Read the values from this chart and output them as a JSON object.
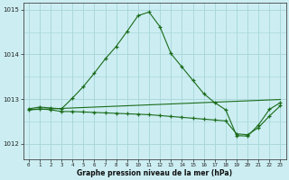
{
  "title": "Graphe pression niveau de la mer (hPa)",
  "background_color": "#cceef2",
  "grid_color": "#aad8dc",
  "line_color": "#1a6b1a",
  "marker_color": "#1a6b1a",
  "xlim": [
    -0.5,
    23.5
  ],
  "ylim": [
    1011.65,
    1015.15
  ],
  "yticks": [
    1012,
    1013,
    1014,
    1015
  ],
  "xtick_labels": [
    "0",
    "1",
    "2",
    "3",
    "4",
    "5",
    "6",
    "7",
    "8",
    "9",
    "10",
    "11",
    "12",
    "13",
    "14",
    "15",
    "16",
    "17",
    "18",
    "19",
    "20",
    "21",
    "22",
    "23"
  ],
  "series1": [
    1012.78,
    1012.82,
    1012.8,
    1012.78,
    1013.02,
    1013.28,
    1013.58,
    1013.9,
    1014.18,
    1014.52,
    1014.87,
    1014.95,
    1014.62,
    1014.02,
    1013.72,
    1013.42,
    1013.12,
    1012.92,
    1012.76,
    1012.18,
    1012.17,
    1012.42,
    1012.77,
    1012.92
  ],
  "series2": [
    1012.76,
    1012.78,
    1012.76,
    1012.72,
    1012.72,
    1012.71,
    1012.7,
    1012.69,
    1012.68,
    1012.67,
    1012.66,
    1012.65,
    1012.63,
    1012.61,
    1012.59,
    1012.57,
    1012.55,
    1012.53,
    1012.51,
    1012.22,
    1012.2,
    1012.36,
    1012.62,
    1012.85
  ],
  "series3": [
    1012.76,
    1012.77,
    1012.78,
    1012.79,
    1012.8,
    1012.81,
    1012.82,
    1012.83,
    1012.84,
    1012.85,
    1012.86,
    1012.87,
    1012.88,
    1012.89,
    1012.9,
    1012.91,
    1012.92,
    1012.93,
    1012.94,
    1012.95,
    1012.96,
    1012.97,
    1012.98,
    1012.99
  ]
}
